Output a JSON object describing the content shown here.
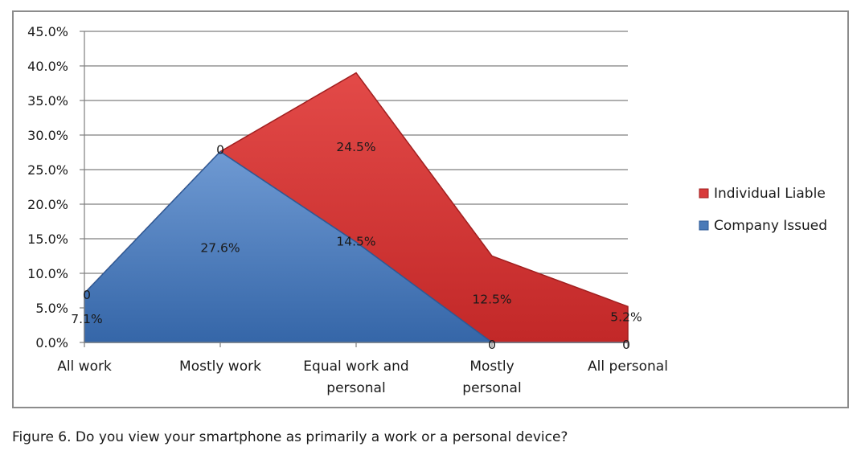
{
  "caption": "Figure 6. Do you view your smartphone as primarily a work or a personal device?",
  "chart_data": {
    "type": "area",
    "stacked": true,
    "categories": [
      [
        "All work"
      ],
      [
        "Mostly work"
      ],
      [
        "Equal work and",
        "personal"
      ],
      [
        "Mostly",
        "personal"
      ],
      [
        "All personal"
      ]
    ],
    "series": [
      {
        "name": "Company Issued",
        "color": "#4a7ab8",
        "values": [
          7.1,
          27.6,
          14.5,
          0,
          0
        ],
        "labels": [
          "7.1%",
          "27.6%",
          "14.5%",
          "0",
          "0"
        ]
      },
      {
        "name": "Individual Liable",
        "color": "#d83a3a",
        "values": [
          0,
          0,
          24.5,
          12.5,
          5.2
        ],
        "labels": [
          "0",
          "0",
          "24.5%",
          "12.5%",
          "5.2%"
        ]
      }
    ],
    "y_ticks": [
      "0.0%",
      "5.0%",
      "10.0%",
      "15.0%",
      "20.0%",
      "25.0%",
      "30.0%",
      "35.0%",
      "40.0%",
      "45.0%"
    ],
    "ylim": [
      0,
      45
    ],
    "grid": true,
    "legend": [
      "Individual Liable",
      "Company Issued"
    ],
    "legend_position": "right"
  }
}
